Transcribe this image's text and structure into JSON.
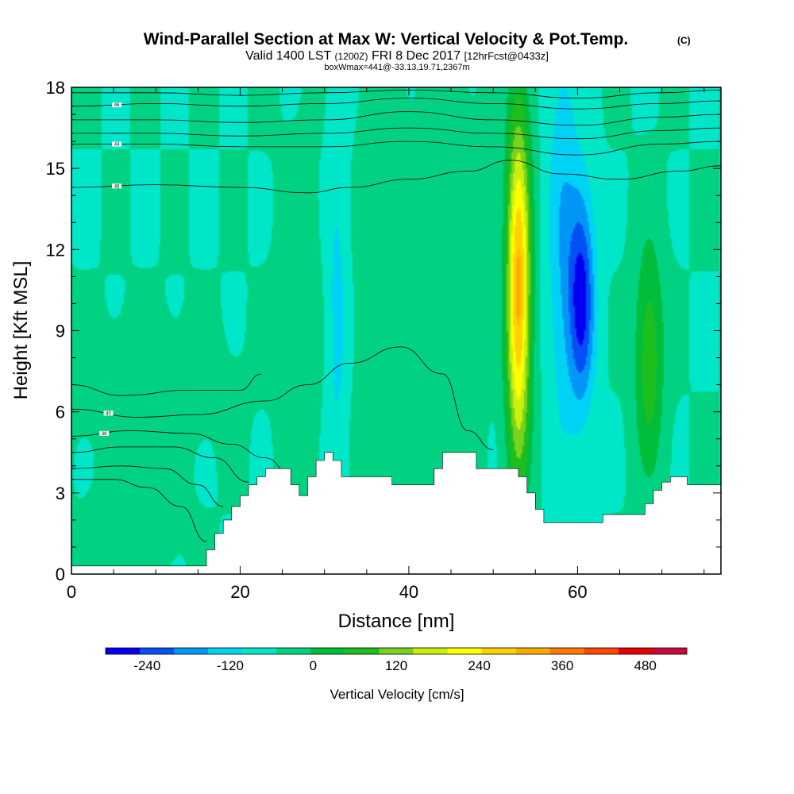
{
  "header": {
    "title": "Wind-Parallel Section at Max W: Vertical Velocity & Pot.Temp.",
    "title_mark": "(C)",
    "valid_prefix": "Valid 1400 LST",
    "valid_utc": "(1200Z)",
    "valid_date": "FRI 8 Dec 2017",
    "valid_fcst": "[12hrFcst@0433z]",
    "box_info": "boxWmax=441@-33.13,19.71,2367m"
  },
  "colorbar": {
    "label": "Vertical Velocity [cm/s]",
    "tick_labels": [
      "-240",
      "-120",
      "0",
      "120",
      "240",
      "360",
      "480"
    ],
    "colors": [
      "#0000f0",
      "#0050f5",
      "#0096f5",
      "#00d2f5",
      "#00e6c8",
      "#00d282",
      "#00be3c",
      "#1ebe1e",
      "#78d21e",
      "#c8f00a",
      "#ffff00",
      "#ffd200",
      "#ffaa00",
      "#ff7800",
      "#ff4600",
      "#e60000",
      "#c80a3c"
    ]
  },
  "chart_data": {
    "type": "heatmap",
    "xlabel": "Distance [nm]",
    "ylabel": "Height [Kft MSL]",
    "xlim": [
      0,
      77
    ],
    "ylim": [
      0,
      18
    ],
    "x_ticks": [
      0,
      20,
      40,
      60
    ],
    "y_ticks": [
      0,
      3,
      6,
      9,
      12,
      15,
      18
    ],
    "x_tick_labels": [
      "0",
      "20",
      "40",
      "60"
    ],
    "y_tick_labels": [
      "0",
      "3",
      "6",
      "9",
      "12",
      "15",
      "18"
    ],
    "colorbar_range": [
      -300,
      540
    ],
    "colorbar_step": 60,
    "max_w": 441,
    "terrain": {
      "x": [
        0,
        15,
        16,
        17,
        18,
        19,
        20,
        21,
        22,
        23,
        25,
        26,
        27,
        28,
        29,
        30,
        31,
        32,
        33,
        37,
        38,
        42,
        43,
        44,
        46,
        48,
        52,
        53,
        54,
        55,
        56,
        62,
        63,
        64,
        67,
        68,
        69,
        70,
        71,
        72,
        73,
        75,
        77
      ],
      "y": [
        0.3,
        0.3,
        0.9,
        1.5,
        2.0,
        2.5,
        2.9,
        3.3,
        3.6,
        3.9,
        3.9,
        3.3,
        2.9,
        3.6,
        4.2,
        4.5,
        4.2,
        3.6,
        3.6,
        3.6,
        3.3,
        3.3,
        3.9,
        4.5,
        4.5,
        3.9,
        3.9,
        3.6,
        3.0,
        2.4,
        1.9,
        1.9,
        2.2,
        2.2,
        2.2,
        2.6,
        3.1,
        3.4,
        3.6,
        3.6,
        3.3,
        3.3,
        2.9
      ]
    },
    "w_features": [
      {
        "x": 53,
        "y": 10.5,
        "sx": 1.0,
        "sy": 4.6,
        "value": 441
      },
      {
        "x": 60.5,
        "y": 10.2,
        "sx": 1.1,
        "sy": 2.8,
        "value": -260
      },
      {
        "x": 58.2,
        "y": 12.5,
        "sx": 1.3,
        "sy": 5.5,
        "value": -110
      },
      {
        "x": 31.5,
        "y": 9.5,
        "sx": 1.0,
        "sy": 5.0,
        "value": -85
      },
      {
        "x": 68.5,
        "y": 8.0,
        "sx": 1.2,
        "sy": 3.0,
        "value": 160
      },
      {
        "x": 9,
        "y": 7.0,
        "sx": 6.0,
        "sy": 1.5,
        "value": 35
      },
      {
        "x": 37,
        "y": 8.0,
        "sx": 3.0,
        "sy": 6.0,
        "value": 35
      },
      {
        "x": 27.5,
        "y": 9.0,
        "sx": 2.0,
        "sy": 4.5,
        "value": 30
      },
      {
        "x": 45,
        "y": 11.0,
        "sx": 2.5,
        "sy": 5.0,
        "value": 30
      },
      {
        "x": 8,
        "y": 2.0,
        "sx": 3.0,
        "sy": 1.2,
        "value": 40
      }
    ],
    "theta_contours": [
      {
        "label": "",
        "x": [
          0,
          10,
          20,
          30,
          40,
          50,
          60,
          70,
          77
        ],
        "y": [
          17.8,
          17.8,
          17.7,
          17.8,
          17.9,
          17.8,
          17.6,
          17.8,
          17.9
        ]
      },
      {
        "label": "46",
        "x": [
          0,
          10,
          20,
          30,
          40,
          50,
          60,
          70,
          77
        ],
        "y": [
          17.3,
          17.4,
          17.3,
          17.4,
          17.6,
          17.4,
          17.2,
          17.4,
          17.5
        ]
      },
      {
        "label": "",
        "x": [
          0,
          10,
          20,
          30,
          40,
          50,
          60,
          70,
          77
        ],
        "y": [
          16.8,
          16.8,
          16.7,
          16.8,
          17.1,
          16.8,
          16.6,
          16.9,
          17.0
        ]
      },
      {
        "label": "",
        "x": [
          0,
          10,
          20,
          30,
          40,
          50,
          60,
          70,
          77
        ],
        "y": [
          16.3,
          16.3,
          16.2,
          16.3,
          16.5,
          16.3,
          16.1,
          16.4,
          16.5
        ]
      },
      {
        "label": "44",
        "x": [
          0,
          10,
          20,
          30,
          40,
          50,
          60,
          70,
          77
        ],
        "y": [
          15.9,
          15.9,
          15.8,
          15.8,
          16.0,
          15.8,
          15.5,
          15.9,
          16.0
        ]
      },
      {
        "label": "48",
        "x": [
          0,
          10,
          20,
          28,
          33,
          40,
          47,
          52,
          58,
          65,
          72,
          77
        ],
        "y": [
          14.3,
          14.4,
          14.3,
          14.1,
          14.3,
          14.6,
          14.9,
          15.3,
          14.8,
          14.6,
          14.9,
          15.1
        ]
      },
      {
        "label": "40",
        "x": [
          0,
          8,
          15,
          23,
          28,
          33,
          39,
          44,
          47,
          50
        ],
        "y": [
          6.1,
          5.8,
          5.9,
          6.4,
          7.0,
          7.8,
          8.4,
          7.4,
          5.3,
          4.6
        ]
      },
      {
        "label": "",
        "x": [
          0,
          6,
          14,
          20,
          22.5
        ],
        "y": [
          7.0,
          6.6,
          6.8,
          6.8,
          7.4
        ]
      },
      {
        "label": "38",
        "x": [
          0,
          7,
          14,
          19,
          23,
          26
        ],
        "y": [
          5.1,
          5.3,
          5.2,
          4.8,
          4.3,
          3.7
        ]
      },
      {
        "label": "",
        "x": [
          0,
          6,
          12,
          17,
          21
        ],
        "y": [
          4.5,
          4.7,
          4.7,
          4.3,
          3.4
        ]
      },
      {
        "label": "",
        "x": [
          0,
          6,
          11,
          15,
          18
        ],
        "y": [
          3.9,
          4.0,
          3.9,
          3.3,
          2.5
        ]
      },
      {
        "label": "",
        "x": [
          0,
          5,
          9,
          13,
          16
        ],
        "y": [
          3.5,
          3.5,
          3.2,
          2.5,
          1.2
        ]
      }
    ]
  }
}
